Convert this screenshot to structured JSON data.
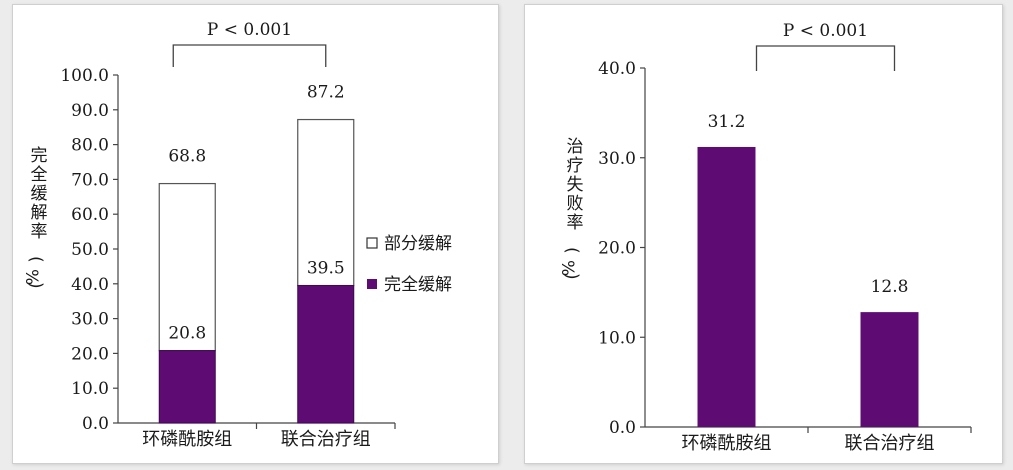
{
  "chart_data": [
    {
      "type": "bar",
      "stacked": true,
      "categories": [
        "环磷酰胺组",
        "联合治疗组"
      ],
      "series": [
        {
          "name": "完全缓解",
          "values": [
            20.8,
            39.5
          ],
          "color": "#5e0c73"
        },
        {
          "name": "部分缓解",
          "values": [
            48.0,
            47.7
          ],
          "color": "#ffffff"
        }
      ],
      "totals": [
        68.8,
        87.2
      ],
      "data_labels": {
        "totals": [
          "68.8",
          "87.2"
        ],
        "inner": [
          "20.8",
          "39.5"
        ]
      },
      "ylabel": "完全缓解率(%)",
      "ylim": [
        0,
        100
      ],
      "yticks": [
        "0.0",
        "10.0",
        "20.0",
        "30.0",
        "40.0",
        "50.0",
        "60.0",
        "70.0",
        "80.0",
        "90.0",
        "100.0"
      ],
      "annotation": "P < 0.001",
      "legend_position": "right",
      "grid": false
    },
    {
      "type": "bar",
      "categories": [
        "环磷酰胺组",
        "联合治疗组"
      ],
      "values": [
        31.2,
        12.8
      ],
      "data_labels": [
        "31.2",
        "12.8"
      ],
      "color": "#5e0c73",
      "ylabel": "治疗失败率(%)",
      "ylim": [
        0,
        40
      ],
      "yticks": [
        "0.0",
        "10.0",
        "20.0",
        "30.0",
        "40.0"
      ],
      "annotation": "P < 0.001",
      "grid": false
    }
  ]
}
